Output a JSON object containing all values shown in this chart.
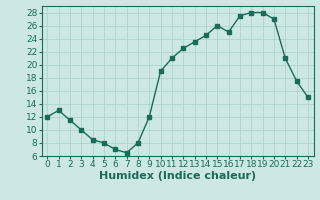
{
  "x": [
    0,
    1,
    2,
    3,
    4,
    5,
    6,
    7,
    8,
    9,
    10,
    11,
    12,
    13,
    14,
    15,
    16,
    17,
    18,
    19,
    20,
    21,
    22,
    23
  ],
  "y": [
    12,
    13,
    11.5,
    10,
    8.5,
    8,
    7,
    6.5,
    8,
    12,
    19,
    21,
    22.5,
    23.5,
    24.5,
    26,
    25,
    27.5,
    28,
    28,
    27,
    21,
    17.5,
    15
  ],
  "line_color": "#1a6b5a",
  "marker": "s",
  "marker_size": 2.5,
  "bg_color": "#cde8e4",
  "grid_color": "#aacfc9",
  "xlabel": "Humidex (Indice chaleur)",
  "xlim": [
    -0.5,
    23.5
  ],
  "ylim": [
    6,
    29
  ],
  "yticks": [
    6,
    8,
    10,
    12,
    14,
    16,
    18,
    20,
    22,
    24,
    26,
    28
  ],
  "xticks": [
    0,
    1,
    2,
    3,
    4,
    5,
    6,
    7,
    8,
    9,
    10,
    11,
    12,
    13,
    14,
    15,
    16,
    17,
    18,
    19,
    20,
    21,
    22,
    23
  ],
  "tick_label_size": 6.5,
  "xlabel_size": 8,
  "line_width": 1.0
}
